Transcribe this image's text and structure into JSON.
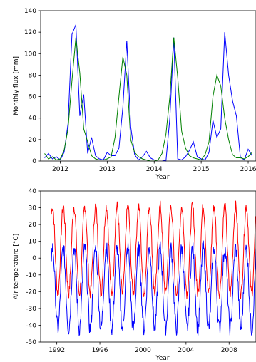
{
  "colors": {
    "blue": "#0000ff",
    "green": "#008000",
    "red": "#ff0000",
    "axis": "#000000"
  },
  "chart_data": [
    {
      "type": "line",
      "ylabel": "Monthly flux [mm]",
      "xlabel": "Year",
      "xlim": [
        "2011-08-01",
        "2016-03-01"
      ],
      "ylim": [
        0,
        140
      ],
      "yticks": [
        0,
        20,
        40,
        60,
        80,
        100,
        120,
        140
      ],
      "xticks": [
        "2012",
        "2013",
        "2014",
        "2015",
        "2016"
      ],
      "x": [
        "2011-09",
        "2011-10",
        "2011-11",
        "2011-12",
        "2012-01",
        "2012-02",
        "2012-03",
        "2012-04",
        "2012-05",
        "2012-06",
        "2012-07",
        "2012-08",
        "2012-09",
        "2012-10",
        "2012-11",
        "2012-12",
        "2013-01",
        "2013-02",
        "2013-03",
        "2013-04",
        "2013-05",
        "2013-06",
        "2013-07",
        "2013-08",
        "2013-09",
        "2013-10",
        "2013-11",
        "2013-12",
        "2014-01",
        "2014-02",
        "2014-03",
        "2014-04",
        "2014-05",
        "2014-06",
        "2014-07",
        "2014-08",
        "2014-09",
        "2014-10",
        "2014-11",
        "2014-12",
        "2015-01",
        "2015-02",
        "2015-03",
        "2015-04",
        "2015-05",
        "2015-06",
        "2015-07",
        "2015-08",
        "2015-09",
        "2015-10",
        "2015-11",
        "2015-12",
        "2016-01",
        "2016-02"
      ],
      "series": [
        {
          "color": "blue",
          "values": [
            3,
            7,
            2,
            4,
            1,
            8,
            35,
            118,
            127,
            42,
            62,
            7,
            22,
            5,
            2,
            1,
            8,
            5,
            5,
            12,
            50,
            112,
            32,
            6,
            1,
            4,
            9,
            3,
            1,
            1,
            1,
            0,
            40,
            115,
            2,
            1,
            4,
            10,
            18,
            4,
            2,
            1,
            8,
            38,
            22,
            30,
            120,
            80,
            56,
            42,
            4,
            1,
            11,
            5
          ]
        },
        {
          "color": "green",
          "values": [
            7,
            2,
            4,
            1,
            2,
            10,
            30,
            75,
            115,
            82,
            30,
            18,
            5,
            2,
            1,
            1,
            2,
            4,
            22,
            60,
            97,
            80,
            20,
            8,
            4,
            2,
            1,
            0,
            0,
            1,
            7,
            25,
            60,
            115,
            78,
            28,
            12,
            5,
            3,
            2,
            1,
            6,
            18,
            60,
            80,
            70,
            40,
            20,
            6,
            3,
            3,
            2,
            4,
            8
          ]
        }
      ]
    },
    {
      "type": "line",
      "ylabel": "Air temperature [°C]",
      "xlabel": "Year",
      "xlim": [
        1990.5,
        2010.5
      ],
      "ylim": [
        -50,
        40
      ],
      "yticks": [
        -50,
        -40,
        -30,
        -20,
        -10,
        0,
        10,
        20,
        30,
        40
      ],
      "xticks": [
        "1992",
        "1996",
        "2000",
        "2004",
        "2008"
      ],
      "series": [
        {
          "color": "red",
          "start": 1991.5,
          "end": 2010.5,
          "base": 5,
          "amp": 26,
          "phase": 0.35,
          "jitter": 3.5
        },
        {
          "color": "blue",
          "start": 1991.5,
          "end": 2010.5,
          "base": -18,
          "amp": 24,
          "phase": 0.35,
          "jitter": 5
        }
      ]
    }
  ]
}
